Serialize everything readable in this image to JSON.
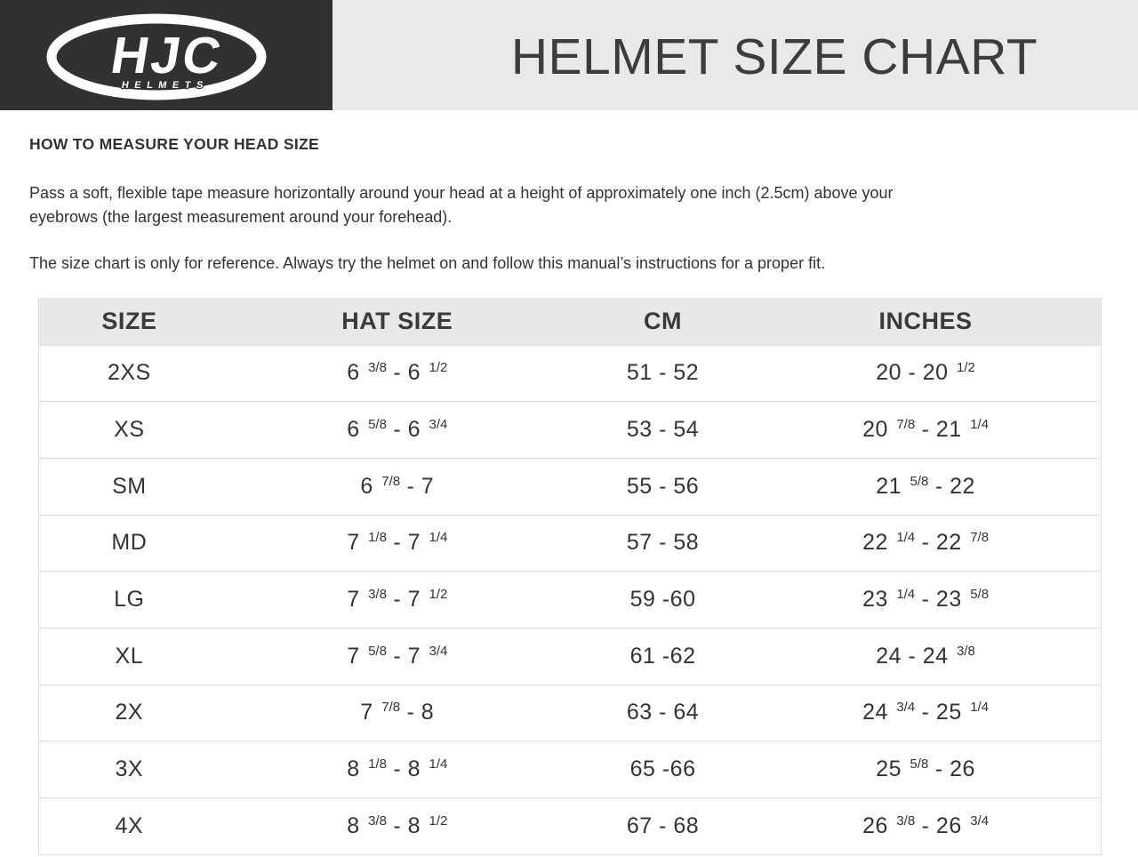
{
  "header": {
    "logo": {
      "brand": "HJC",
      "sub": "HELMETS"
    },
    "title": "HELMET SIZE CHART"
  },
  "section": {
    "heading": "HOW TO MEASURE YOUR HEAD SIZE",
    "para1_lines": [
      "Pass a soft, flexible tape measure horizontally around your head at a height of approximately one inch (2.5cm) above your",
      "eyebrows (the largest measurement around your forehead)."
    ],
    "para2": "The size chart is only for reference. Always try the helmet on and follow this manual’s instructions for a proper fit."
  },
  "table": {
    "columns": [
      "SIZE",
      "HAT SIZE",
      "CM",
      "INCHES"
    ],
    "rows": [
      {
        "size": "2XS",
        "hat": "6 ^3/8^ - 6 ^1/2^",
        "cm": "51 - 52",
        "inches": "20 - 20 ^1/2^"
      },
      {
        "size": "XS",
        "hat": "6 ^5/8^ - 6 ^3/4^",
        "cm": "53 - 54",
        "inches": "20 ^7/8^ - 21 ^1/4^"
      },
      {
        "size": "SM",
        "hat": "6 ^7/8^ - 7",
        "cm": "55 - 56",
        "inches": "21 ^5/8^ - 22"
      },
      {
        "size": "MD",
        "hat": "7 ^1/8^ - 7 ^1/4^",
        "cm": "57 - 58",
        "inches": "22 ^1/4^ - 22 ^7/8^"
      },
      {
        "size": "LG",
        "hat": "7 ^3/8^ - 7 ^1/2^",
        "cm": "59 -60",
        "inches": "23 ^1/4^ - 23 ^5/8^"
      },
      {
        "size": "XL",
        "hat": "7 ^5/8^ - 7 ^3/4^",
        "cm": "61 -62",
        "inches": "24 - 24 ^3/8^"
      },
      {
        "size": "2X",
        "hat": "7 ^7/8^ - 8",
        "cm": "63 - 64",
        "inches": "24 ^3/4^ - 25 ^1/4^"
      },
      {
        "size": "3X",
        "hat": "8 ^1/8^ - 8 ^1/4^",
        "cm": "65 -66",
        "inches": "25 ^5/8^ - 26"
      },
      {
        "size": "4X",
        "hat": "8 ^3/8^ - 8 ^1/2^",
        "cm": "67 - 68",
        "inches": "26 ^3/8^ - 26 ^3/4^"
      }
    ]
  },
  "colors": {
    "header_dark": "#313131",
    "header_light": "#e9e9e9",
    "title_text": "#3c3c3c",
    "body_text": "#333333",
    "table_header_bg": "#e8e8e8",
    "table_border": "#dcdcdc"
  }
}
